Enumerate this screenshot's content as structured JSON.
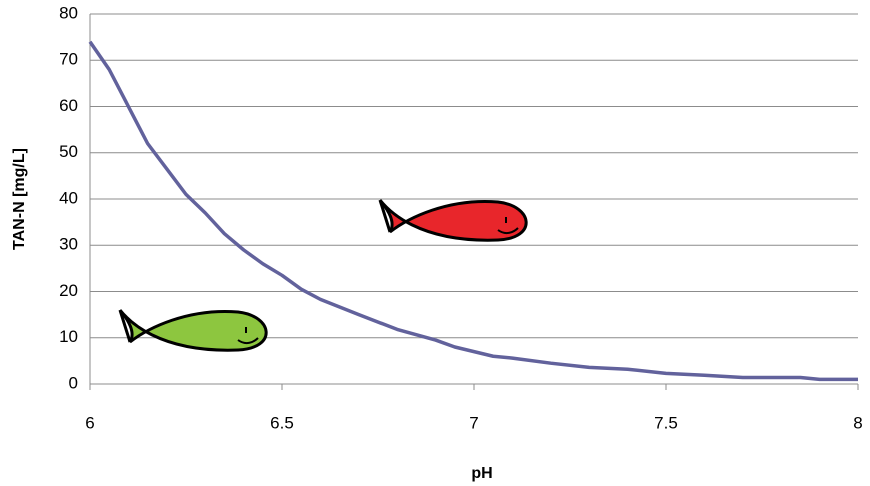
{
  "chart_data": {
    "type": "line",
    "xlabel": "pH",
    "ylabel": "TAN-N [mg/L]",
    "x": [
      6.0,
      6.05,
      6.1,
      6.15,
      6.2,
      6.25,
      6.3,
      6.35,
      6.4,
      6.45,
      6.5,
      6.55,
      6.6,
      6.7,
      6.8,
      6.9,
      6.95,
      7.0,
      7.05,
      7.1,
      7.2,
      7.3,
      7.4,
      7.5,
      7.6,
      7.7,
      7.85,
      7.9,
      8.0
    ],
    "series": [
      {
        "color": "#62629c",
        "values": [
          74,
          68,
          60,
          52,
          46.5,
          41,
          37,
          32.5,
          29,
          26,
          23.5,
          20.5,
          18.3,
          15,
          11.8,
          9.5,
          8,
          7,
          6,
          5.6,
          4.5,
          3.6,
          3.2,
          2.3,
          1.9,
          1.4,
          1.4,
          1,
          1
        ]
      }
    ],
    "xlim": [
      6,
      8
    ],
    "xticks": [
      6,
      6.5,
      7,
      7.5,
      8
    ],
    "ylim": [
      0,
      80
    ],
    "yticks": [
      0,
      10,
      20,
      30,
      40,
      50,
      60,
      70,
      80
    ],
    "grid": true
  }
}
